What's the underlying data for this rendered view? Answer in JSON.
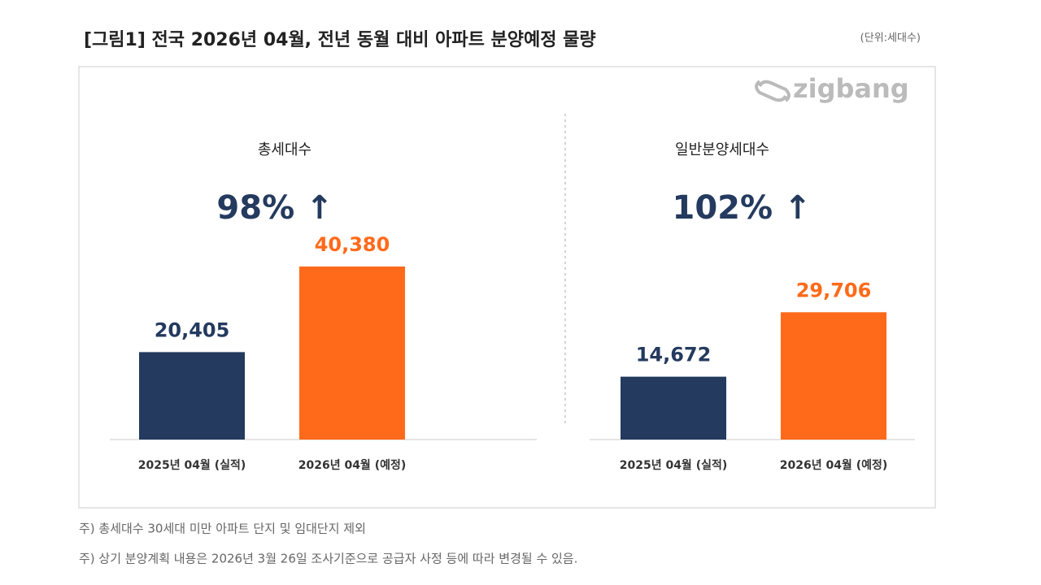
{
  "title": "[그림1] 전국 2026년 04월, 전년 동월 대비 아파트 분양예정 물량",
  "unit": "(단위:세대수)",
  "logo": "zigbang",
  "notes": [
    "주) 총세대수 30세대 미만 아파트  단지 및 임대단지 제외",
    "주) 상기 분양계획 내용은 2026년 3월 26일 조사기준으로 공급자 사정 등에 따라 변경될 수 있음."
  ],
  "chart_data": [
    {
      "type": "bar",
      "title": "총세대수",
      "annotation": "98% ↑",
      "categories": [
        "2025년 04월 (실적)",
        "2026년 04월 (예정)"
      ],
      "values": [
        20405,
        40380
      ],
      "value_labels": [
        "20,405",
        "40,380"
      ],
      "colors": [
        "#243a5e",
        "#ff6a1a"
      ]
    },
    {
      "type": "bar",
      "title": "일반분양세대수",
      "annotation": "102% ↑",
      "categories": [
        "2025년 04월 (실적)",
        "2026년 04월 (예정)"
      ],
      "values": [
        14672,
        29706
      ],
      "value_labels": [
        "14,672",
        "29,706"
      ],
      "colors": [
        "#243a5e",
        "#ff6a1a"
      ]
    }
  ]
}
